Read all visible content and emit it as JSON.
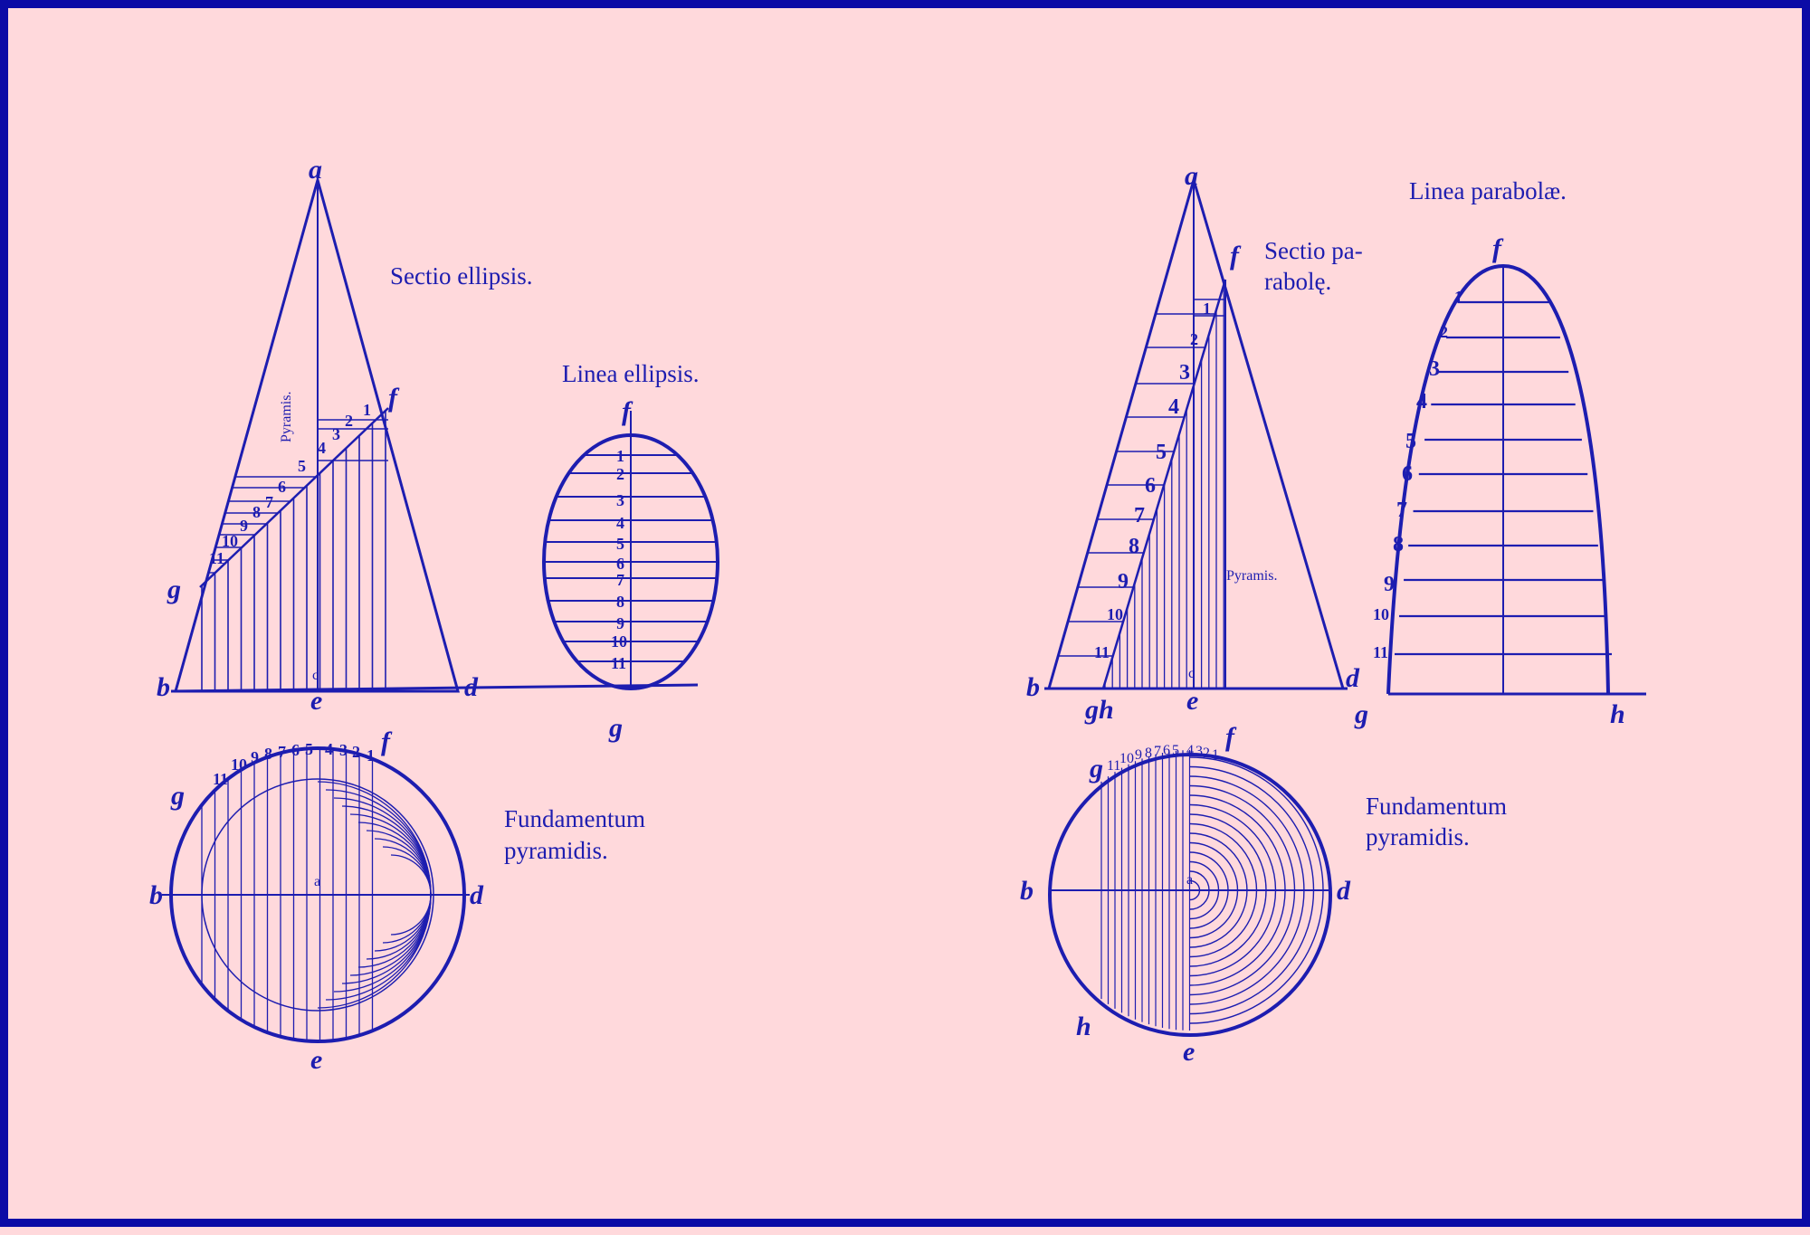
{
  "colors": {
    "ink": "#1d1db0",
    "paper": "#ffd9dc",
    "frame": "#0b0ba6"
  },
  "left_plate": {
    "section_title": "Sectio ellipsis.",
    "curve_title": "Linea ellipsis.",
    "base_title_line1": "Fundamentum",
    "base_title_line2": "pyramidis.",
    "pyramid_label": "Pyramis.",
    "points": {
      "a": "a",
      "b": "b",
      "c": "c",
      "d": "d",
      "e": "e",
      "f": "f",
      "g": "g"
    },
    "section_numbers": [
      "1",
      "2",
      "3",
      "4",
      "5",
      "6",
      "7",
      "8",
      "9",
      "10",
      "11"
    ],
    "base_numbers": [
      "11",
      "10",
      "9",
      "8",
      "7",
      "6",
      "5",
      "4",
      "3",
      "2",
      "1"
    ],
    "ellipse_numbers": [
      "1",
      "2",
      "3",
      "4",
      "5",
      "6",
      "7",
      "8",
      "9",
      "10",
      "11"
    ]
  },
  "right_plate": {
    "section_title_line1": "Sectio pa-",
    "section_title_line2": "rabolę.",
    "curve_title": "Linea parabolæ.",
    "base_title_line1": "Fundamentum",
    "base_title_line2": "pyramidis.",
    "pyramid_label": "Pyramis.",
    "points": {
      "a": "a",
      "b": "b",
      "c": "c",
      "d": "d",
      "e": "e",
      "f": "f",
      "g": "g",
      "h": "h",
      "gh": "gh"
    },
    "section_numbers": [
      "1",
      "2",
      "3",
      "4",
      "5",
      "6",
      "7",
      "8",
      "9",
      "10",
      "11"
    ],
    "base_numbers": [
      "11",
      "10",
      "9",
      "8",
      "7",
      "6",
      "5",
      "4",
      "3",
      "2",
      "1"
    ],
    "parabola_numbers": [
      "1",
      "2",
      "3",
      "4",
      "5",
      "6",
      "7",
      "8",
      "9",
      "10",
      "11"
    ]
  }
}
